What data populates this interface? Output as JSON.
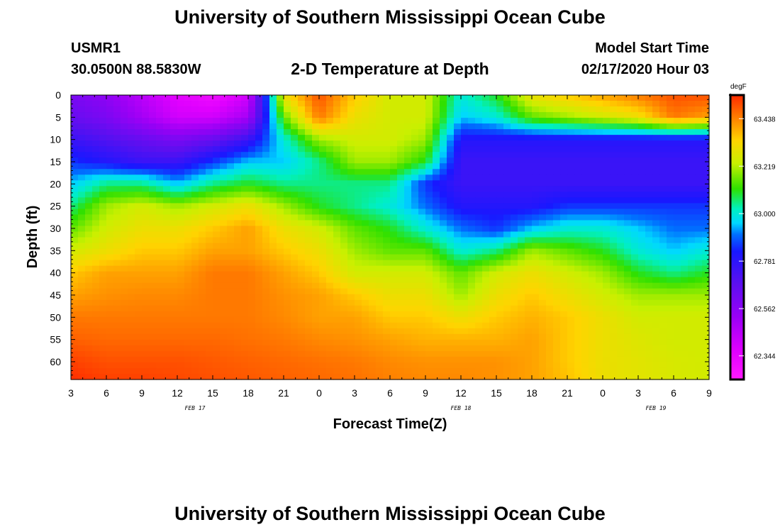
{
  "page": {
    "title_top": "University of Southern Mississippi Ocean Cube",
    "title_bottom": "University of Southern Mississippi Ocean Cube"
  },
  "header": {
    "station_id": "USMR1",
    "coordinates": "30.0500N 88.5830W",
    "model_start_label": "Model Start Time",
    "model_start_value": "02/17/2020 Hour 03"
  },
  "chart_data": {
    "type": "heatmap",
    "title": "2-D Temperature at Depth",
    "xlabel": "Forecast Time(Z)",
    "ylabel": "Depth (ft)",
    "x_ticks": [
      "3",
      "6",
      "9",
      "12",
      "15",
      "18",
      "21",
      "0",
      "3",
      "6",
      "9",
      "12",
      "15",
      "18",
      "21",
      "0",
      "3",
      "6",
      "9"
    ],
    "x_hours": [
      0,
      3,
      6,
      9,
      12,
      15,
      18,
      21,
      24,
      27,
      30,
      33,
      36,
      39,
      42,
      45,
      48,
      51,
      54
    ],
    "x_range_hours": [
      0,
      54
    ],
    "date_labels": [
      {
        "text": "FEB 17",
        "hour": 10.5
      },
      {
        "text": "FEB 18",
        "hour": 33
      },
      {
        "text": "FEB 19",
        "hour": 49.5
      }
    ],
    "y_ticks": [
      0,
      5,
      10,
      15,
      20,
      25,
      30,
      35,
      40,
      45,
      50,
      55,
      60
    ],
    "y_range": [
      0,
      64
    ],
    "colorbar": {
      "unit": "degF",
      "min": 62.235,
      "max": 63.547,
      "labels": [
        "63.438",
        "63.219",
        "63.000",
        "62.781",
        "62.562",
        "62.344"
      ],
      "label_values": [
        63.438,
        63.219,
        63.0,
        62.781,
        62.562,
        62.344
      ]
    },
    "field": {
      "hours": [
        0,
        3,
        6,
        9,
        12,
        15,
        18,
        21,
        24,
        27,
        30,
        33,
        36,
        39,
        42,
        45,
        48,
        51,
        54
      ],
      "depths": [
        0,
        5,
        10,
        15,
        20,
        25,
        30,
        35,
        40,
        45,
        50,
        55,
        60,
        64
      ],
      "rows": [
        [
          62.6,
          62.55,
          62.45,
          62.35,
          62.3,
          62.4,
          63.3,
          63.5,
          63.35,
          63.25,
          63.25,
          63.0,
          63.1,
          63.3,
          63.35,
          63.4,
          63.45,
          63.5,
          63.5
        ],
        [
          62.65,
          62.6,
          62.5,
          62.4,
          62.4,
          62.5,
          63.15,
          63.45,
          63.3,
          63.25,
          63.25,
          62.95,
          63.0,
          63.15,
          63.2,
          63.25,
          63.3,
          63.45,
          63.4
        ],
        [
          62.75,
          62.7,
          62.65,
          62.6,
          62.65,
          62.75,
          63.0,
          63.2,
          63.25,
          63.25,
          63.2,
          62.8,
          62.8,
          62.8,
          62.8,
          62.8,
          62.8,
          62.8,
          62.8
        ],
        [
          62.85,
          62.8,
          62.75,
          62.75,
          62.85,
          62.95,
          62.95,
          63.05,
          63.2,
          63.2,
          63.1,
          62.75,
          62.75,
          62.75,
          62.75,
          62.75,
          62.75,
          62.75,
          62.75
        ],
        [
          62.95,
          63.05,
          63.05,
          62.95,
          63.05,
          63.1,
          63.05,
          63.05,
          63.05,
          63.05,
          62.85,
          62.75,
          62.75,
          62.75,
          62.75,
          62.75,
          62.75,
          62.75,
          62.75
        ],
        [
          63.05,
          63.2,
          63.25,
          63.2,
          63.25,
          63.3,
          63.2,
          63.1,
          63.05,
          63.0,
          62.9,
          62.8,
          62.8,
          62.8,
          62.85,
          62.85,
          62.85,
          62.85,
          62.85
        ],
        [
          63.15,
          63.25,
          63.3,
          63.3,
          63.35,
          63.4,
          63.3,
          63.25,
          63.15,
          63.1,
          63.0,
          62.9,
          62.85,
          62.95,
          63.0,
          63.0,
          62.95,
          62.9,
          62.9
        ],
        [
          63.25,
          63.3,
          63.35,
          63.35,
          63.4,
          63.4,
          63.35,
          63.3,
          63.2,
          63.15,
          63.15,
          63.0,
          63.05,
          63.2,
          63.15,
          63.1,
          63.0,
          62.95,
          63.0
        ],
        [
          63.35,
          63.4,
          63.4,
          63.4,
          63.45,
          63.45,
          63.4,
          63.35,
          63.25,
          63.25,
          63.25,
          63.15,
          63.25,
          63.3,
          63.25,
          63.2,
          63.1,
          63.05,
          63.1
        ],
        [
          63.4,
          63.42,
          63.43,
          63.43,
          63.45,
          63.45,
          63.42,
          63.4,
          63.35,
          63.3,
          63.3,
          63.2,
          63.3,
          63.35,
          63.3,
          63.25,
          63.2,
          63.2,
          63.2
        ],
        [
          63.45,
          63.45,
          63.45,
          63.45,
          63.45,
          63.45,
          63.43,
          63.4,
          63.4,
          63.35,
          63.35,
          63.3,
          63.35,
          63.38,
          63.35,
          63.3,
          63.25,
          63.25,
          63.25
        ],
        [
          63.48,
          63.47,
          63.47,
          63.47,
          63.47,
          63.46,
          63.45,
          63.43,
          63.42,
          63.4,
          63.38,
          63.38,
          63.38,
          63.4,
          63.35,
          63.3,
          63.27,
          63.25,
          63.25
        ],
        [
          63.52,
          63.5,
          63.5,
          63.5,
          63.49,
          63.48,
          63.47,
          63.46,
          63.45,
          63.43,
          63.42,
          63.42,
          63.42,
          63.4,
          63.35,
          63.3,
          63.28,
          63.26,
          63.25
        ],
        [
          63.54,
          63.52,
          63.52,
          63.51,
          63.5,
          63.49,
          63.48,
          63.47,
          63.46,
          63.44,
          63.43,
          63.43,
          63.42,
          63.4,
          63.36,
          63.3,
          63.28,
          63.26,
          63.25
        ]
      ]
    }
  }
}
